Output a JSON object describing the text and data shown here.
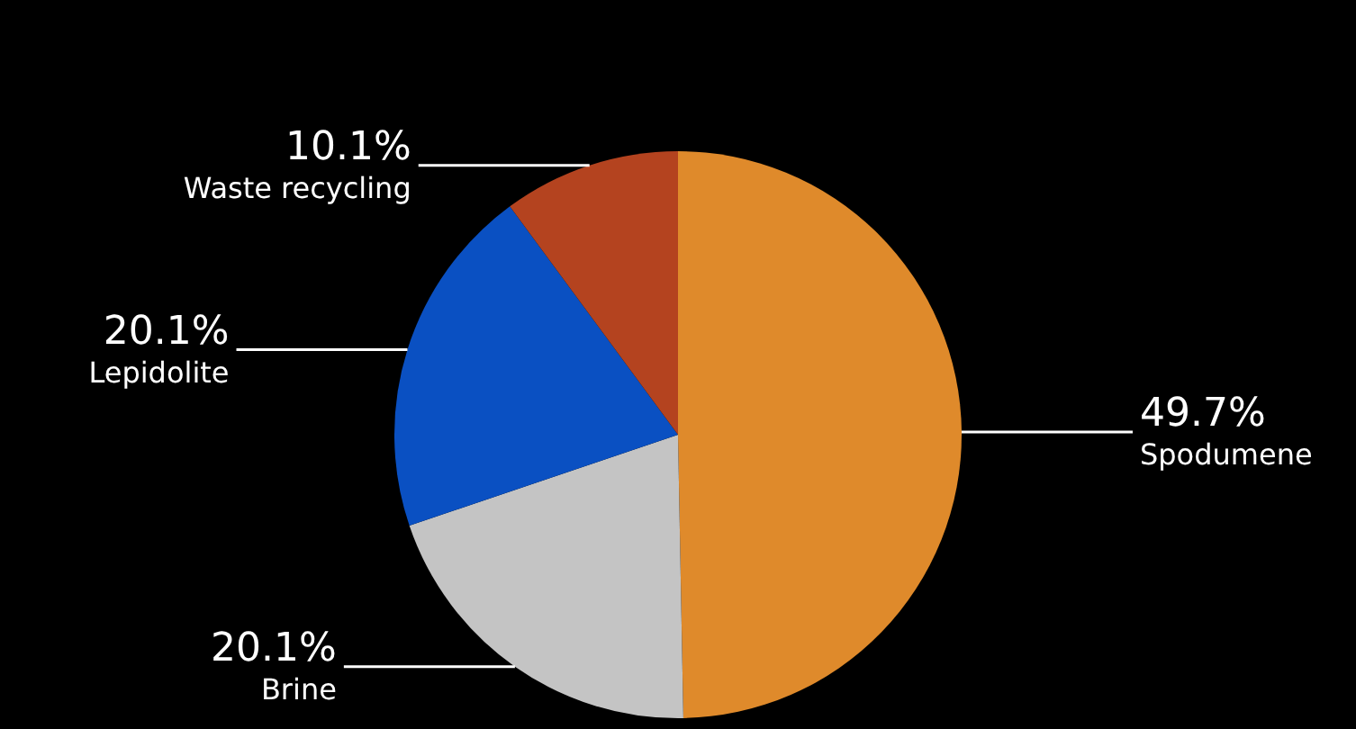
{
  "chart_data": {
    "type": "pie",
    "categories": [
      "Spodumene",
      "Brine",
      "Lepidolite",
      "Waste recycling"
    ],
    "values": [
      49.7,
      20.1,
      20.1,
      10.1
    ],
    "value_labels": [
      "49.7%",
      "20.1%",
      "20.1%",
      "10.1%"
    ],
    "colors": [
      "#df8a2b",
      "#c4c4c4",
      "#0a50c2",
      "#b4431f"
    ],
    "legend": false
  }
}
